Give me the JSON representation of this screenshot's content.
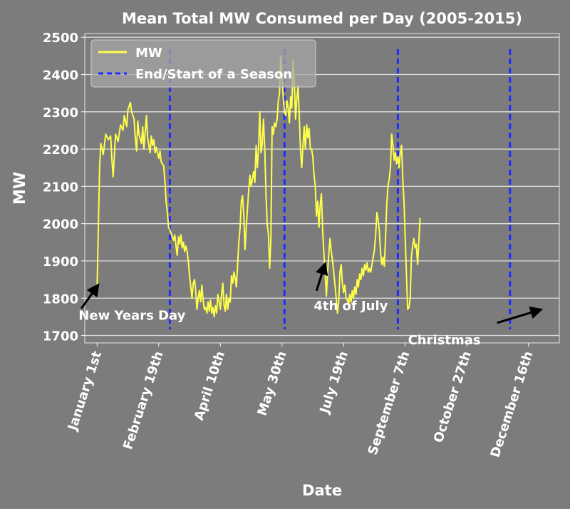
{
  "chart_data": {
    "type": "line",
    "title": "Mean Total MW Consumed per Day (2005-2015)",
    "xlabel": "Date",
    "ylabel": "MW",
    "ylim": [
      1680,
      2510
    ],
    "yticks": [
      1700,
      1800,
      1900,
      2000,
      2100,
      2200,
      2300,
      2400,
      2500
    ],
    "xlim": [
      -10,
      375
    ],
    "xticks": [
      {
        "day": 0,
        "label": "January 1st"
      },
      {
        "day": 50,
        "label": "February 19th"
      },
      {
        "day": 100,
        "label": "April 10th"
      },
      {
        "day": 150,
        "label": "May 30th"
      },
      {
        "day": 200,
        "label": "July 19th"
      },
      {
        "day": 250,
        "label": "September 7th"
      },
      {
        "day": 300,
        "label": "October 27th"
      },
      {
        "day": 350,
        "label": "December 16th"
      }
    ],
    "grid": "horizontal",
    "legend_position": "top-left",
    "series": [
      {
        "name": "MW",
        "color": "#ffff4a",
        "points": [
          [
            0,
            1830
          ],
          [
            2,
            2150
          ],
          [
            3,
            2215
          ],
          [
            5,
            2185
          ],
          [
            7,
            2240
          ],
          [
            9,
            2225
          ],
          [
            11,
            2235
          ],
          [
            12,
            2170
          ],
          [
            13,
            2125
          ],
          [
            15,
            2240
          ],
          [
            17,
            2220
          ],
          [
            19,
            2265
          ],
          [
            21,
            2250
          ],
          [
            22,
            2290
          ],
          [
            24,
            2260
          ],
          [
            25,
            2305
          ],
          [
            27,
            2325
          ],
          [
            28,
            2300
          ],
          [
            30,
            2280
          ],
          [
            31,
            2230
          ],
          [
            32,
            2195
          ],
          [
            33,
            2275
          ],
          [
            34,
            2240
          ],
          [
            36,
            2215
          ],
          [
            37,
            2260
          ],
          [
            38,
            2200
          ],
          [
            40,
            2290
          ],
          [
            41,
            2230
          ],
          [
            43,
            2190
          ],
          [
            44,
            2235
          ],
          [
            45,
            2210
          ],
          [
            46,
            2225
          ],
          [
            47,
            2190
          ],
          [
            48,
            2205
          ],
          [
            50,
            2175
          ],
          [
            51,
            2195
          ],
          [
            52,
            2165
          ],
          [
            54,
            2155
          ],
          [
            55,
            2115
          ],
          [
            56,
            2060
          ],
          [
            57,
            2030
          ],
          [
            58,
            1990
          ],
          [
            60,
            1975
          ],
          [
            62,
            1955
          ],
          [
            63,
            1970
          ],
          [
            64,
            1940
          ],
          [
            65,
            1915
          ],
          [
            66,
            1965
          ],
          [
            67,
            1945
          ],
          [
            68,
            1970
          ],
          [
            69,
            1935
          ],
          [
            70,
            1950
          ],
          [
            71,
            1925
          ],
          [
            72,
            1940
          ],
          [
            73,
            1925
          ],
          [
            74,
            1900
          ],
          [
            75,
            1860
          ],
          [
            76,
            1830
          ],
          [
            77,
            1800
          ],
          [
            78,
            1840
          ],
          [
            79,
            1850
          ],
          [
            80,
            1820
          ],
          [
            81,
            1770
          ],
          [
            82,
            1800
          ],
          [
            83,
            1820
          ],
          [
            84,
            1790
          ],
          [
            85,
            1835
          ],
          [
            86,
            1795
          ],
          [
            87,
            1770
          ],
          [
            88,
            1775
          ],
          [
            89,
            1760
          ],
          [
            90,
            1790
          ],
          [
            91,
            1765
          ],
          [
            92,
            1795
          ],
          [
            93,
            1760
          ],
          [
            94,
            1775
          ],
          [
            95,
            1750
          ],
          [
            96,
            1780
          ],
          [
            97,
            1760
          ],
          [
            98,
            1810
          ],
          [
            99,
            1790
          ],
          [
            100,
            1770
          ],
          [
            101,
            1810
          ],
          [
            102,
            1840
          ],
          [
            103,
            1780
          ],
          [
            104,
            1765
          ],
          [
            105,
            1810
          ],
          [
            106,
            1770
          ],
          [
            107,
            1800
          ],
          [
            108,
            1790
          ],
          [
            109,
            1860
          ],
          [
            110,
            1840
          ],
          [
            111,
            1870
          ],
          [
            112,
            1855
          ],
          [
            113,
            1830
          ],
          [
            114,
            1890
          ],
          [
            115,
            1950
          ],
          [
            116,
            1990
          ],
          [
            117,
            2060
          ],
          [
            118,
            2075
          ],
          [
            119,
            2020
          ],
          [
            120,
            1930
          ],
          [
            121,
            1990
          ],
          [
            122,
            2040
          ],
          [
            123,
            2090
          ],
          [
            124,
            2130
          ],
          [
            125,
            2100
          ],
          [
            126,
            2120
          ],
          [
            127,
            2140
          ],
          [
            128,
            2110
          ],
          [
            129,
            2210
          ],
          [
            130,
            2150
          ],
          [
            131,
            2200
          ],
          [
            132,
            2300
          ],
          [
            133,
            2190
          ],
          [
            134,
            2215
          ],
          [
            135,
            2280
          ],
          [
            136,
            2200
          ],
          [
            137,
            2080
          ],
          [
            138,
            2000
          ],
          [
            139,
            1970
          ],
          [
            140,
            1880
          ],
          [
            141,
            1960
          ],
          [
            142,
            2260
          ],
          [
            143,
            2240
          ],
          [
            144,
            2270
          ],
          [
            145,
            2260
          ],
          [
            146,
            2280
          ],
          [
            147,
            2330
          ],
          [
            148,
            2350
          ],
          [
            149,
            2450
          ],
          [
            150,
            2400
          ],
          [
            151,
            2340
          ],
          [
            152,
            2300
          ],
          [
            153,
            2290
          ],
          [
            154,
            2330
          ],
          [
            155,
            2310
          ],
          [
            156,
            2270
          ],
          [
            157,
            2340
          ],
          [
            158,
            2310
          ],
          [
            159,
            2440
          ],
          [
            160,
            2380
          ],
          [
            161,
            2280
          ],
          [
            162,
            2330
          ],
          [
            163,
            2370
          ],
          [
            164,
            2290
          ],
          [
            165,
            2200
          ],
          [
            166,
            2150
          ],
          [
            167,
            2210
          ],
          [
            168,
            2260
          ],
          [
            169,
            2200
          ],
          [
            170,
            2265
          ],
          [
            171,
            2230
          ],
          [
            172,
            2255
          ],
          [
            173,
            2200
          ],
          [
            174,
            2200
          ],
          [
            175,
            2180
          ],
          [
            176,
            2130
          ],
          [
            177,
            2100
          ],
          [
            178,
            2020
          ],
          [
            179,
            2060
          ],
          [
            180,
            1990
          ],
          [
            181,
            2050
          ],
          [
            182,
            2080
          ],
          [
            183,
            1980
          ],
          [
            184,
            1920
          ],
          [
            185,
            1870
          ],
          [
            186,
            1805
          ],
          [
            187,
            1870
          ],
          [
            188,
            1920
          ],
          [
            189,
            1960
          ],
          [
            190,
            1925
          ],
          [
            191,
            1900
          ],
          [
            192,
            1870
          ],
          [
            193,
            1835
          ],
          [
            194,
            1800
          ],
          [
            195,
            1760
          ],
          [
            196,
            1790
          ],
          [
            197,
            1870
          ],
          [
            198,
            1890
          ],
          [
            199,
            1840
          ],
          [
            200,
            1815
          ],
          [
            201,
            1835
          ],
          [
            202,
            1800
          ],
          [
            203,
            1795
          ],
          [
            204,
            1780
          ],
          [
            205,
            1810
          ],
          [
            206,
            1790
          ],
          [
            207,
            1820
          ],
          [
            208,
            1800
          ],
          [
            209,
            1830
          ],
          [
            210,
            1810
          ],
          [
            211,
            1850
          ],
          [
            212,
            1830
          ],
          [
            213,
            1865
          ],
          [
            214,
            1850
          ],
          [
            215,
            1880
          ],
          [
            216,
            1860
          ],
          [
            217,
            1890
          ],
          [
            218,
            1875
          ],
          [
            219,
            1895
          ],
          [
            220,
            1870
          ],
          [
            221,
            1880
          ],
          [
            222,
            1870
          ],
          [
            223,
            1890
          ],
          [
            224,
            1910
          ],
          [
            225,
            1930
          ],
          [
            226,
            1970
          ],
          [
            227,
            2030
          ],
          [
            228,
            2010
          ],
          [
            229,
            1980
          ],
          [
            230,
            1920
          ],
          [
            231,
            1890
          ],
          [
            232,
            1910
          ],
          [
            233,
            1885
          ],
          [
            234,
            1960
          ],
          [
            235,
            2050
          ],
          [
            236,
            2100
          ],
          [
            237,
            2120
          ],
          [
            238,
            2150
          ],
          [
            239,
            2240
          ],
          [
            240,
            2210
          ],
          [
            241,
            2170
          ],
          [
            242,
            2190
          ],
          [
            243,
            2160
          ],
          [
            244,
            2180
          ],
          [
            245,
            2150
          ],
          [
            246,
            2190
          ],
          [
            247,
            2210
          ],
          [
            248,
            2120
          ],
          [
            249,
            2060
          ],
          [
            250,
            1960
          ],
          [
            251,
            1860
          ],
          [
            252,
            1770
          ],
          [
            253,
            1775
          ],
          [
            254,
            1800
          ],
          [
            255,
            1910
          ],
          [
            256,
            1940
          ],
          [
            257,
            1960
          ],
          [
            258,
            1935
          ],
          [
            259,
            1945
          ],
          [
            260,
            1890
          ],
          [
            261,
            1950
          ],
          [
            262,
            2015
          ]
        ]
      }
    ],
    "season_markers": {
      "name": "End/Start of a Season",
      "color": "#1f2bff",
      "x": [
        59,
        152,
        244,
        335
      ]
    },
    "annotations": [
      {
        "text": "New Years Day",
        "x": 0,
        "y": 1830
      },
      {
        "text": "4th of July",
        "x": 185,
        "y": 1885
      },
      {
        "text": "Christmas",
        "x": 358,
        "y": 1770
      }
    ]
  }
}
